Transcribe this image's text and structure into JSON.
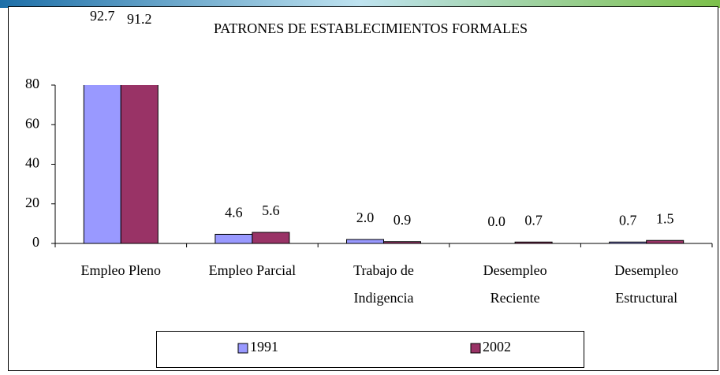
{
  "chart_data": {
    "type": "bar",
    "title": "PATRONES DE ESTABLECIMIENTOS FORMALES",
    "categories": [
      [
        "Empleo Pleno"
      ],
      [
        "Empleo Parcial"
      ],
      [
        "Trabajo de",
        "Indigencia"
      ],
      [
        "Desempleo",
        "Reciente"
      ],
      [
        "Desempleo",
        "Estructural"
      ]
    ],
    "series": [
      {
        "name": "1991",
        "color": "#9999ff",
        "values": [
          92.7,
          4.6,
          2.0,
          0.0,
          0.7
        ],
        "value_labels": [
          "92.7",
          "4.6",
          "2.0",
          "0.0",
          "0.7"
        ]
      },
      {
        "name": "2002",
        "color": "#993366",
        "values": [
          91.2,
          5.6,
          0.9,
          0.7,
          1.5
        ],
        "value_labels": [
          "91.2",
          "5.6",
          "0.9",
          "0.7",
          "1.5"
        ]
      }
    ],
    "ylim": [
      0,
      80
    ],
    "yticks": [
      0,
      20,
      40,
      60,
      80
    ],
    "legend": "bottom"
  }
}
